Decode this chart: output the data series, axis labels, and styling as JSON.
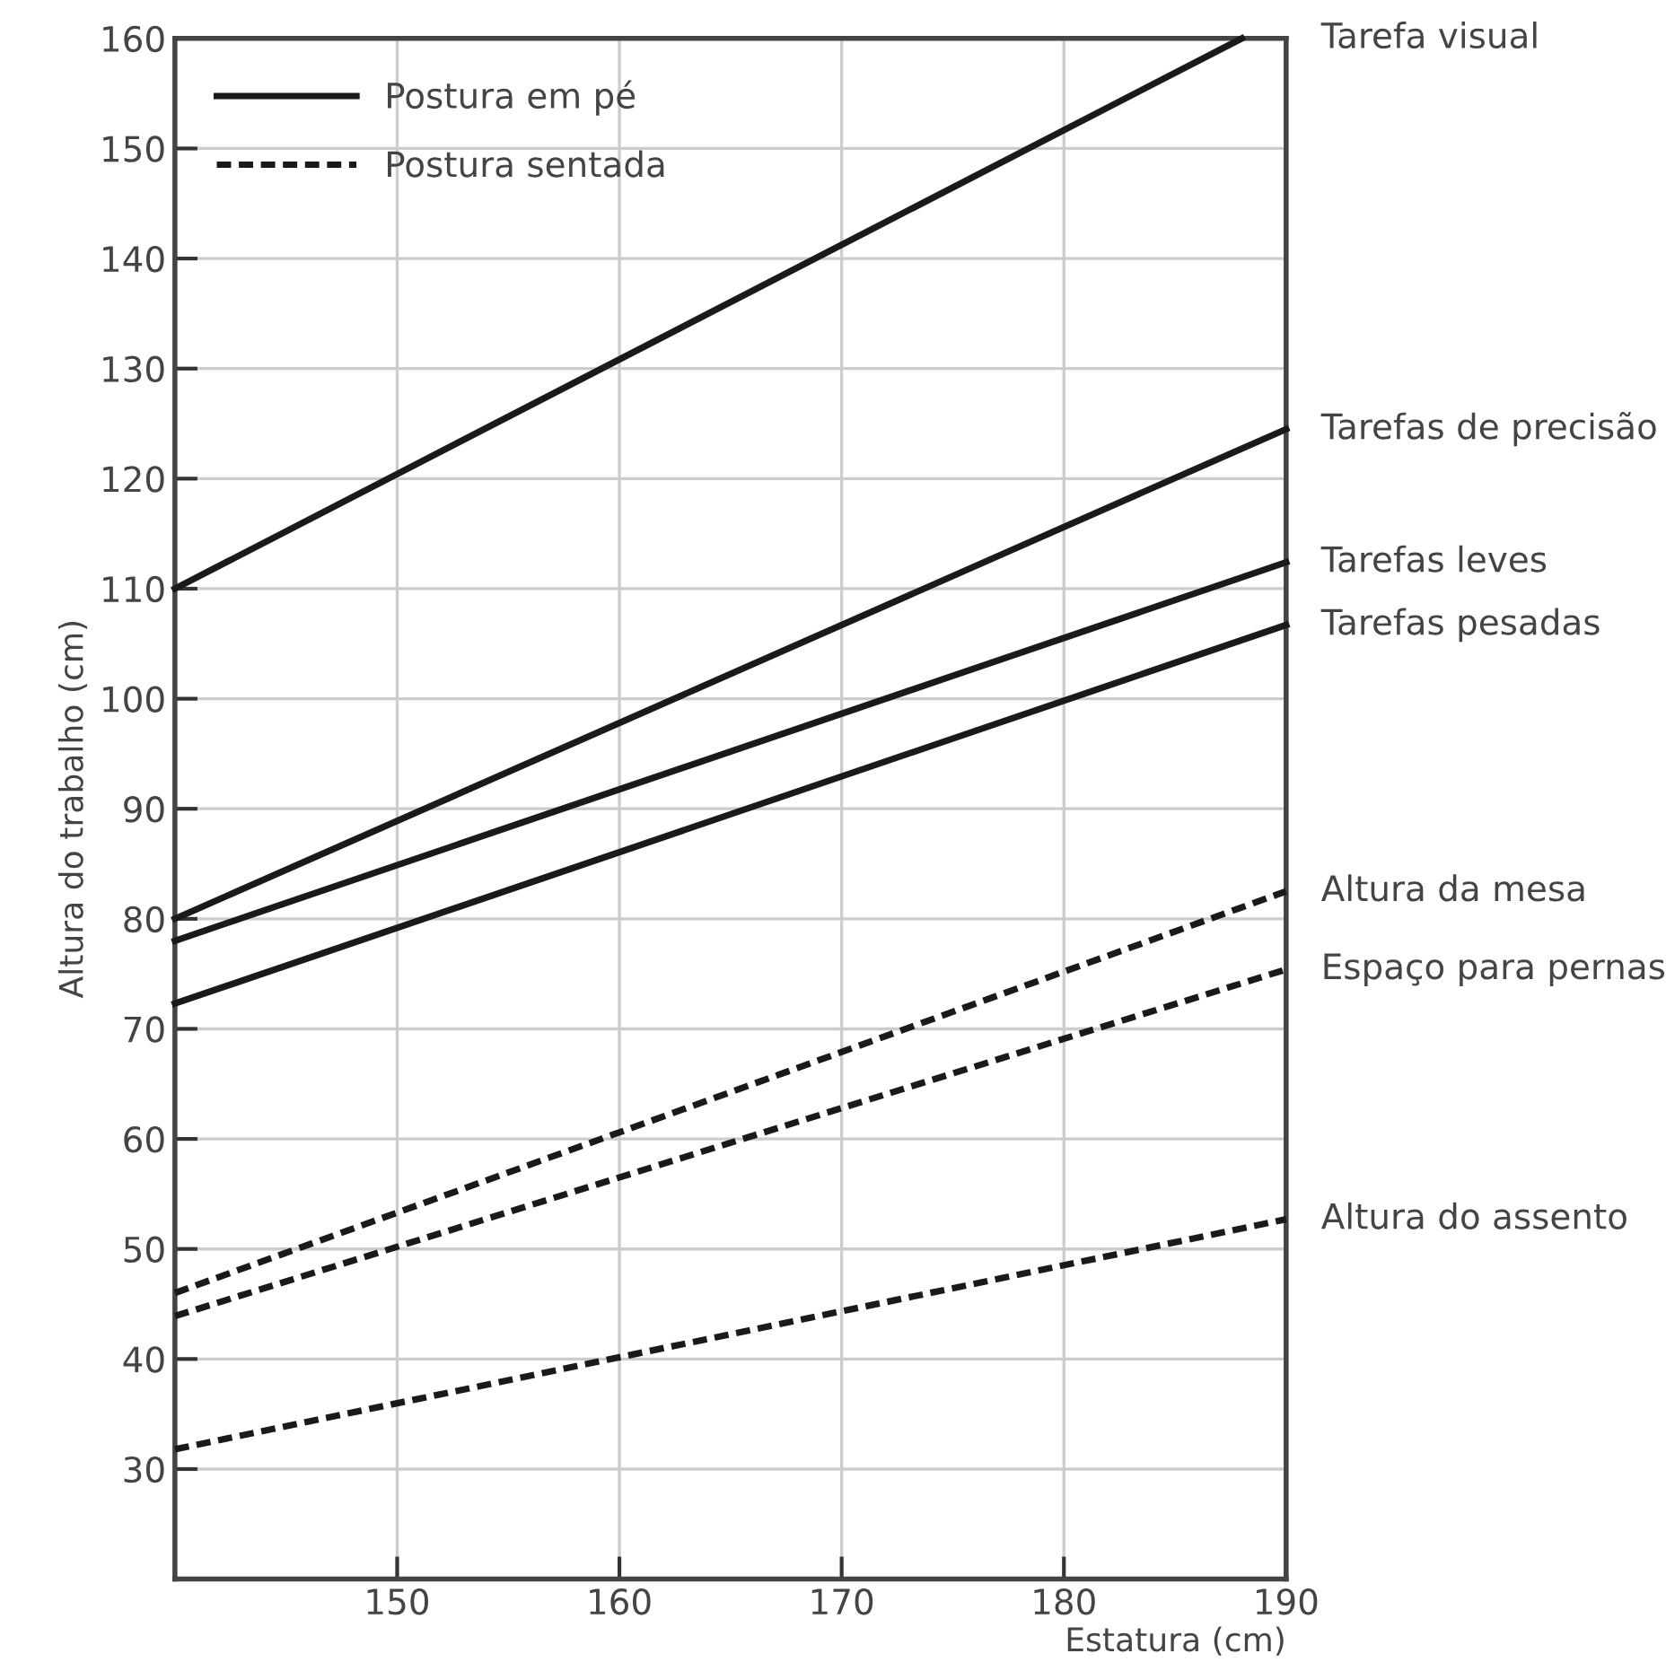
{
  "chart_data": {
    "type": "line",
    "xlabel": "Estatura (cm)",
    "ylabel": "Altura do trabalho (cm)",
    "xlim": [
      140,
      190
    ],
    "xticks": [
      150,
      160,
      170,
      180,
      190
    ],
    "ylim": [
      20,
      160
    ],
    "yticks": [
      30,
      40,
      50,
      60,
      70,
      80,
      90,
      100,
      110,
      120,
      130,
      140,
      150,
      160
    ],
    "grid": true,
    "legend": "top left",
    "marker": "none",
    "annotations": [
      "Tarefa visual",
      "Tarefas de precisão",
      "Tarefas leves",
      "Tarefas pesadas",
      "Altura da mesa",
      "Espaço para pernas",
      "Altura do assento"
    ],
    "series": [
      {
        "name": "Postura em pé",
        "color": "#1a1a1a",
        "line_style": "solid",
        "x": [
          140,
          188
        ],
        "values": [
          110,
          160
        ]
      },
      {
        "color": "#1a1a1a",
        "line_style": "solid",
        "x": [
          140,
          190
        ],
        "values": [
          80,
          124.5
        ]
      },
      {
        "color": "#1a1a1a",
        "line_style": "solid",
        "x": [
          140,
          190
        ],
        "values": [
          78,
          112.4
        ]
      },
      {
        "color": "#1a1a1a",
        "line_style": "solid",
        "x": [
          140,
          190
        ],
        "values": [
          72.3,
          106.7
        ]
      },
      {
        "name": "Postura sentada",
        "color": "#1a1a1a",
        "line_style": "dashed",
        "x": [
          140,
          190
        ],
        "values": [
          46,
          82.5
        ]
      },
      {
        "color": "#1a1a1a",
        "line_style": "dashed",
        "x": [
          140,
          190
        ],
        "values": [
          43.9,
          75.4
        ]
      },
      {
        "color": "#1a1a1a",
        "line_style": "dashed",
        "x": [
          140,
          190
        ],
        "values": [
          31.8,
          52.7
        ]
      }
    ]
  }
}
